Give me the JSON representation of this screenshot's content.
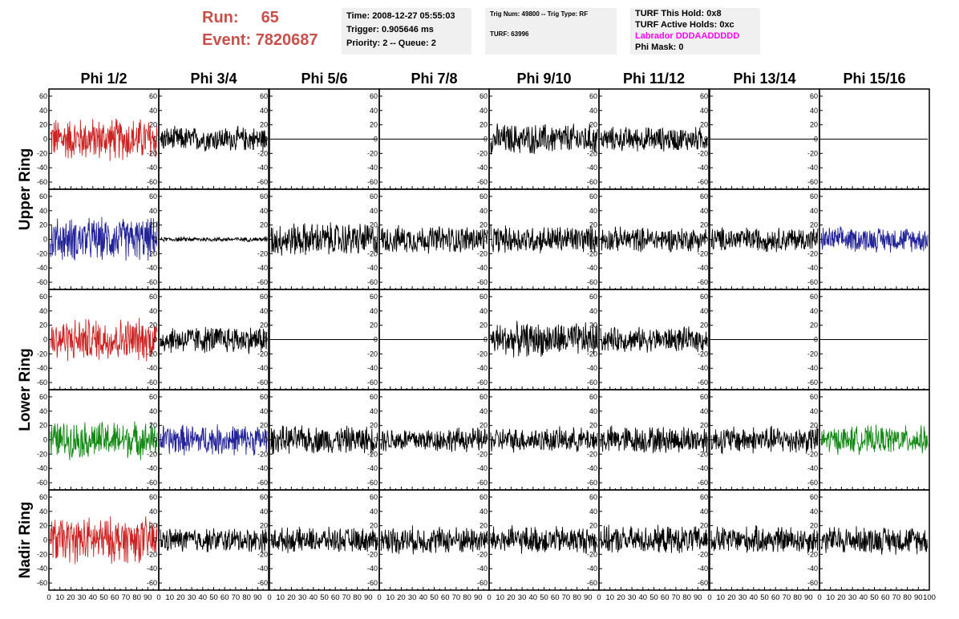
{
  "header": {
    "run_label": "Run:",
    "run_value": "65",
    "event_label": "Event:",
    "event_value": "7820687"
  },
  "info_panel_1": {
    "time": "Time: 2008-12-27 05:55:03",
    "trigger": "Trigger: 0.905646 ms",
    "priority": "Priority: 2 -- Queue: 2"
  },
  "info_panel_2": {
    "trig": "Trig Num: 49800 -- Trig Type: RF",
    "turf": "TURF: 63996"
  },
  "info_panel_3": {
    "this_hold": "TURF This Hold: 0x8",
    "active_holds": "TURF Active Holds: 0xc",
    "labrador": "Labrador DDDAADDDDD",
    "phi_mask": "Phi Mask: 0"
  },
  "chart_data": {
    "type": "line",
    "columns": [
      "Phi 1/2",
      "Phi 3/4",
      "Phi 5/6",
      "Phi 7/8",
      "Phi 9/10",
      "Phi 11/12",
      "Phi 13/14",
      "Phi 15/16"
    ],
    "ring_labels": [
      "Upper Ring",
      "Lower Ring",
      "Nadir Ring"
    ],
    "ylim": [
      -70,
      70
    ],
    "xlim": [
      0,
      100
    ],
    "y_ticks": [
      -60,
      -40,
      -20,
      0,
      20,
      40,
      60
    ],
    "x_ticks": [
      0,
      10,
      20,
      30,
      40,
      50,
      60,
      70,
      80,
      90,
      100
    ],
    "colors": {
      "red": "#cc2222",
      "blue": "#222299",
      "green": "#118811",
      "black": "#000000"
    },
    "rows": [
      {
        "colors": [
          "red",
          "black",
          "black",
          "black",
          "black",
          "black",
          "black",
          "black"
        ],
        "amps": [
          28,
          16,
          0,
          0,
          20,
          16,
          0,
          0
        ]
      },
      {
        "colors": [
          "blue",
          "black",
          "black",
          "black",
          "black",
          "black",
          "black",
          "blue"
        ],
        "amps": [
          28,
          3,
          22,
          18,
          18,
          16,
          16,
          16
        ]
      },
      {
        "colors": [
          "red",
          "black",
          "black",
          "black",
          "black",
          "black",
          "black",
          "black"
        ],
        "amps": [
          28,
          18,
          0,
          0,
          22,
          16,
          0,
          0
        ]
      },
      {
        "colors": [
          "green",
          "blue",
          "black",
          "black",
          "black",
          "black",
          "black",
          "green"
        ],
        "amps": [
          24,
          20,
          18,
          16,
          16,
          18,
          18,
          18
        ]
      },
      {
        "colors": [
          "red",
          "black",
          "black",
          "black",
          "black",
          "black",
          "black",
          "black"
        ],
        "amps": [
          30,
          16,
          16,
          18,
          18,
          18,
          18,
          18
        ]
      }
    ]
  }
}
